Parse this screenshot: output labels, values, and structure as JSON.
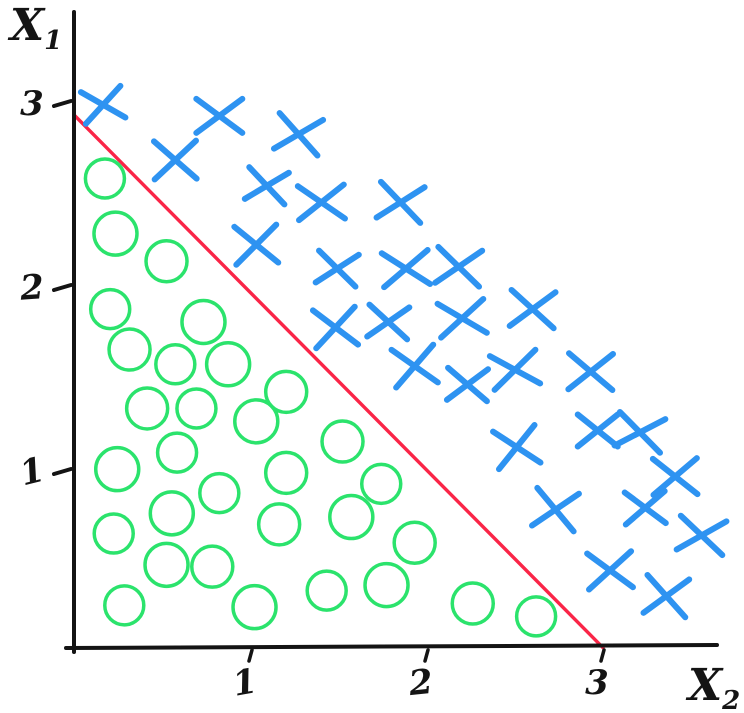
{
  "chart_data": {
    "type": "scatter",
    "title": "",
    "description": "hand-drawn two-class scatter plot with linear decision boundary",
    "ink_color": "#141414",
    "x_axis": {
      "label": "X",
      "label_sub": "2",
      "ticks": [
        "1",
        "2",
        "3"
      ],
      "range": [
        0,
        3.65
      ]
    },
    "y_axis": {
      "label": "X",
      "label_sub": "1",
      "ticks": [
        "1",
        "2",
        "3"
      ],
      "range": [
        0,
        3.5
      ]
    },
    "decision_boundary": {
      "color": "#fa2547",
      "from": {
        "x2": 0.0,
        "x1": 2.93
      },
      "to": {
        "x2": 3.0,
        "x1": 0.04
      }
    },
    "series": [
      {
        "name": "class-cross",
        "marker": "cross",
        "color": "#2e93f1",
        "points": [
          [
            0.16,
            2.99
          ],
          [
            0.82,
            2.93
          ],
          [
            1.27,
            2.83
          ],
          [
            0.57,
            2.69
          ],
          [
            1.09,
            2.55
          ],
          [
            1.4,
            2.46
          ],
          [
            1.85,
            2.46
          ],
          [
            1.03,
            2.23
          ],
          [
            1.49,
            2.1
          ],
          [
            1.88,
            2.1
          ],
          [
            2.18,
            2.11
          ],
          [
            1.48,
            1.78
          ],
          [
            1.78,
            1.81
          ],
          [
            2.2,
            1.83
          ],
          [
            2.6,
            1.88
          ],
          [
            1.93,
            1.57
          ],
          [
            2.23,
            1.47
          ],
          [
            2.5,
            1.55
          ],
          [
            2.93,
            1.54
          ],
          [
            2.51,
            1.13
          ],
          [
            2.97,
            1.22
          ],
          [
            3.21,
            1.21
          ],
          [
            3.41,
            0.97
          ],
          [
            2.73,
            0.79
          ],
          [
            3.24,
            0.8
          ],
          [
            3.56,
            0.65
          ],
          [
            3.04,
            0.46
          ],
          [
            3.36,
            0.32
          ]
        ]
      },
      {
        "name": "class-circle",
        "marker": "circle",
        "color": "#2be36c",
        "points": [
          [
            0.17,
            2.59
          ],
          [
            0.23,
            2.29
          ],
          [
            0.52,
            2.14
          ],
          [
            0.2,
            1.88
          ],
          [
            0.73,
            1.81
          ],
          [
            0.31,
            1.66
          ],
          [
            0.57,
            1.58
          ],
          [
            0.87,
            1.58
          ],
          [
            0.41,
            1.34
          ],
          [
            0.69,
            1.34
          ],
          [
            1.03,
            1.27
          ],
          [
            1.2,
            1.43
          ],
          [
            0.58,
            1.1
          ],
          [
            0.24,
            1.01
          ],
          [
            1.2,
            0.99
          ],
          [
            0.82,
            0.88
          ],
          [
            0.55,
            0.77
          ],
          [
            1.16,
            0.71
          ],
          [
            0.22,
            0.66
          ],
          [
            0.52,
            0.49
          ],
          [
            0.78,
            0.48
          ],
          [
            0.28,
            0.27
          ],
          [
            1.02,
            0.26
          ],
          [
            1.52,
            1.16
          ],
          [
            1.74,
            0.93
          ],
          [
            1.57,
            0.75
          ],
          [
            1.93,
            0.61
          ],
          [
            1.43,
            0.35
          ],
          [
            1.77,
            0.38
          ],
          [
            2.26,
            0.28
          ],
          [
            2.62,
            0.21
          ]
        ]
      }
    ]
  }
}
